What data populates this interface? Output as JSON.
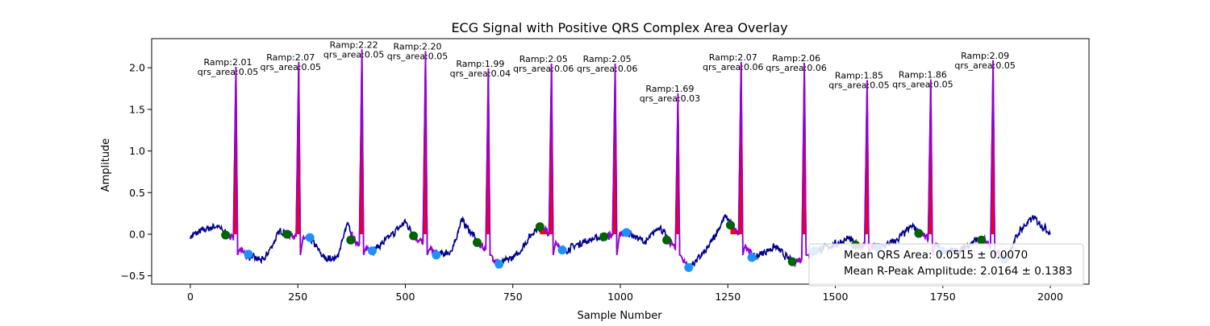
{
  "chart_data": {
    "type": "line",
    "title": "ECG Signal with Positive QRS Complex Area Overlay",
    "xlabel": "Sample Number",
    "ylabel": "Amplitude",
    "xlim": [
      -90,
      2090
    ],
    "ylim": [
      -0.6,
      2.35
    ],
    "xticks": [
      0,
      250,
      500,
      750,
      1000,
      1250,
      1500,
      1750,
      2000
    ],
    "yticks": [
      -0.5,
      0.0,
      0.5,
      1.0,
      1.5,
      2.0
    ],
    "xtick_labels": [
      "0",
      "250",
      "500",
      "750",
      "1000",
      "1250",
      "1500",
      "1750",
      "2000"
    ],
    "ytick_labels": [
      "−0.5",
      "0.0",
      "0.5",
      "1.0",
      "1.5",
      "2.0"
    ],
    "grid": false,
    "colors": {
      "signal": "#00008b",
      "qrs_segment": "#9400d3",
      "qrs_area": "#ff0000",
      "onset_marker": "#006400",
      "offset_marker": "#1e90ff"
    },
    "beats": [
      {
        "r": 106,
        "amp": 2.01,
        "area": 0.05,
        "amp_label": "Ramp:2.01",
        "area_label": "qrs_area:0.05",
        "onset": [
          82,
          -0.01
        ],
        "offset": [
          135,
          -0.24
        ]
      },
      {
        "r": 252,
        "amp": 2.07,
        "area": 0.05,
        "amp_label": "Ramp:2.07",
        "area_label": "qrs_area:0.05",
        "onset": [
          225,
          0.0
        ],
        "offset": [
          278,
          -0.04
        ]
      },
      {
        "r": 399,
        "amp": 2.22,
        "area": 0.05,
        "amp_label": "Ramp:2.22",
        "area_label": "qrs_area:0.05",
        "onset": [
          373,
          -0.07
        ],
        "offset": [
          423,
          -0.2
        ]
      },
      {
        "r": 547,
        "amp": 2.2,
        "area": 0.05,
        "amp_label": "Ramp:2.20",
        "area_label": "qrs_area:0.05",
        "onset": [
          519,
          -0.02
        ],
        "offset": [
          572,
          -0.25
        ]
      },
      {
        "r": 693,
        "amp": 1.99,
        "area": 0.04,
        "amp_label": "Ramp:1.99",
        "area_label": "qrs_area:0.04",
        "onset": [
          667,
          -0.1
        ],
        "offset": [
          718,
          -0.36
        ]
      },
      {
        "r": 840,
        "amp": 2.05,
        "area": 0.06,
        "amp_label": "Ramp:2.05",
        "area_label": "qrs_area:0.06",
        "onset": [
          813,
          0.09
        ],
        "offset": [
          865,
          -0.19
        ]
      },
      {
        "r": 988,
        "amp": 2.05,
        "area": 0.06,
        "amp_label": "Ramp:2.05",
        "area_label": "qrs_area:0.06",
        "onset": [
          962,
          -0.03
        ],
        "offset": [
          1014,
          0.02
        ]
      },
      {
        "r": 1134,
        "amp": 1.69,
        "area": 0.03,
        "amp_label": "Ramp:1.69",
        "area_label": "qrs_area:0.03",
        "onset": [
          1108,
          -0.07
        ],
        "offset": [
          1159,
          -0.4
        ]
      },
      {
        "r": 1281,
        "amp": 2.07,
        "area": 0.06,
        "amp_label": "Ramp:2.07",
        "area_label": "qrs_area:0.06",
        "onset": [
          1256,
          0.11
        ],
        "offset": [
          1306,
          -0.28
        ]
      },
      {
        "r": 1428,
        "amp": 2.06,
        "area": 0.06,
        "amp_label": "Ramp:2.06",
        "area_label": "qrs_area:0.06",
        "onset": [
          1400,
          -0.33
        ],
        "offset": [
          1452,
          -0.2
        ]
      },
      {
        "r": 1574,
        "amp": 1.85,
        "area": 0.05,
        "amp_label": "Ramp:1.85",
        "area_label": "qrs_area:0.05",
        "onset": [
          1547,
          -0.13
        ],
        "offset": [
          1600,
          -0.16
        ]
      },
      {
        "r": 1722,
        "amp": 1.86,
        "area": 0.05,
        "amp_label": "Ramp:1.86",
        "area_label": "qrs_area:0.05",
        "onset": [
          1694,
          0.01
        ],
        "offset": [
          1747,
          -0.2
        ]
      },
      {
        "r": 1867,
        "amp": 2.09,
        "area": 0.05,
        "amp_label": "Ramp:2.09",
        "area_label": "qrs_area:0.05",
        "onset": [
          1840,
          -0.07
        ],
        "offset": [
          1893,
          -0.3
        ]
      }
    ],
    "baseline_knots": [
      [
        0,
        -0.03
      ],
      [
        30,
        0.05
      ],
      [
        60,
        0.1
      ],
      [
        90,
        -0.01
      ],
      [
        130,
        -0.26
      ],
      [
        170,
        -0.32
      ],
      [
        210,
        0.05
      ],
      [
        228,
        0.0
      ],
      [
        280,
        -0.06
      ],
      [
        310,
        -0.28
      ],
      [
        340,
        -0.3
      ],
      [
        365,
        0.12
      ],
      [
        380,
        -0.07
      ],
      [
        425,
        -0.2
      ],
      [
        460,
        -0.05
      ],
      [
        500,
        0.15
      ],
      [
        522,
        -0.03
      ],
      [
        575,
        -0.25
      ],
      [
        610,
        -0.2
      ],
      [
        630,
        0.18
      ],
      [
        670,
        -0.1
      ],
      [
        720,
        -0.36
      ],
      [
        760,
        -0.25
      ],
      [
        800,
        0.05
      ],
      [
        818,
        0.09
      ],
      [
        870,
        -0.2
      ],
      [
        910,
        -0.1
      ],
      [
        950,
        -0.04
      ],
      [
        966,
        -0.03
      ],
      [
        1018,
        0.02
      ],
      [
        1060,
        -0.1
      ],
      [
        1090,
        0.1
      ],
      [
        1112,
        -0.07
      ],
      [
        1160,
        -0.4
      ],
      [
        1200,
        -0.2
      ],
      [
        1245,
        0.22
      ],
      [
        1260,
        0.11
      ],
      [
        1310,
        -0.28
      ],
      [
        1360,
        -0.15
      ],
      [
        1398,
        -0.33
      ],
      [
        1405,
        -0.33
      ],
      [
        1455,
        -0.2
      ],
      [
        1500,
        -0.12
      ],
      [
        1530,
        -0.05
      ],
      [
        1550,
        -0.13
      ],
      [
        1605,
        -0.16
      ],
      [
        1640,
        -0.08
      ],
      [
        1680,
        0.1
      ],
      [
        1698,
        0.01
      ],
      [
        1750,
        -0.2
      ],
      [
        1790,
        -0.2
      ],
      [
        1825,
        -0.07
      ],
      [
        1845,
        -0.07
      ],
      [
        1895,
        -0.3
      ],
      [
        1930,
        0.05
      ],
      [
        1960,
        0.2
      ],
      [
        2000,
        0.02
      ]
    ],
    "legend": {
      "placement": "lower-right",
      "entries": [
        "Mean QRS Area: 0.0515 ± 0.0070",
        "Mean R-Peak Amplitude: 2.0164 ± 0.1383"
      ]
    }
  }
}
